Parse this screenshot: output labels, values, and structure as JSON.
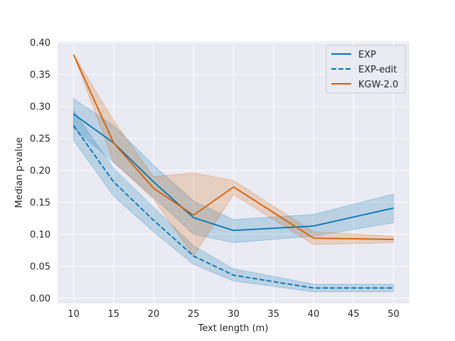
{
  "chart_data": {
    "type": "line",
    "xlabel": "Text length (m)",
    "ylabel": "Median p-value",
    "xlim": [
      8,
      52
    ],
    "ylim": [
      -0.008,
      0.402
    ],
    "xticks": [
      10,
      15,
      20,
      25,
      30,
      35,
      40,
      45,
      50
    ],
    "yticks": [
      0.0,
      0.05,
      0.1,
      0.15,
      0.2,
      0.25,
      0.3,
      0.35,
      0.4
    ],
    "ytick_labels": [
      "0.00",
      "0.05",
      "0.10",
      "0.15",
      "0.20",
      "0.25",
      "0.30",
      "0.35",
      "0.40"
    ],
    "grid": true,
    "legend_position": "top-right",
    "colors": {
      "background": "#eaeaf2",
      "grid": "#ffffff",
      "blue": "#0173b2",
      "orange": "#d55e00"
    },
    "series": [
      {
        "name": "EXP",
        "style": "solid",
        "color": "#0173b2",
        "x": [
          10,
          15,
          20,
          25,
          30,
          40,
          50
        ],
        "y": [
          0.288,
          0.243,
          0.182,
          0.126,
          0.106,
          0.113,
          0.141
        ],
        "lower": [
          0.266,
          0.213,
          0.158,
          0.1,
          0.087,
          0.097,
          0.118
        ],
        "upper": [
          0.312,
          0.27,
          0.208,
          0.152,
          0.123,
          0.131,
          0.163
        ]
      },
      {
        "name": "EXP-edit",
        "style": "dashed",
        "color": "#0173b2",
        "x": [
          10,
          15,
          20,
          25,
          30,
          40,
          50
        ],
        "y": [
          0.27,
          0.182,
          0.122,
          0.066,
          0.036,
          0.016,
          0.016
        ],
        "lower": [
          0.247,
          0.16,
          0.104,
          0.053,
          0.027,
          0.01,
          0.01
        ],
        "upper": [
          0.293,
          0.203,
          0.142,
          0.082,
          0.046,
          0.022,
          0.022
        ]
      },
      {
        "name": "KGW-2.0",
        "style": "solid",
        "color": "#d55e00",
        "x": [
          10,
          15,
          20,
          25,
          30,
          40,
          50
        ],
        "y": [
          0.381,
          0.243,
          0.172,
          0.13,
          0.174,
          0.094,
          0.092
        ],
        "lower": [
          0.381,
          0.213,
          0.155,
          0.066,
          0.162,
          0.084,
          0.087
        ],
        "upper": [
          0.381,
          0.278,
          0.19,
          0.196,
          0.184,
          0.104,
          0.097
        ]
      }
    ]
  }
}
